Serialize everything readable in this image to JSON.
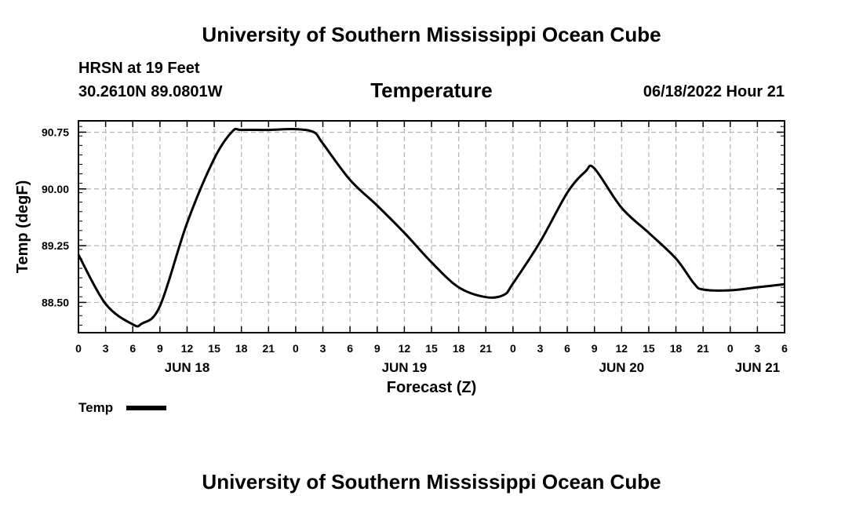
{
  "header": {
    "top_title": "University of Southern Mississippi Ocean Cube",
    "station": "HRSN at 19 Feet",
    "coordinates": "30.2610N  89.0801W",
    "chart_title": "Temperature",
    "datetime": "06/18/2022 Hour 21"
  },
  "footer": {
    "bottom_title": "University of Southern Mississippi Ocean Cube"
  },
  "chart_data": {
    "type": "line",
    "title": "Temperature",
    "xlabel": "Forecast (Z)",
    "ylabel": "Temp (degF)",
    "xlim": [
      0,
      78
    ],
    "ylim": [
      88.1,
      90.9
    ],
    "x_unit": "hours since 06/18/2022 00Z",
    "yticks": [
      "88.50",
      "89.25",
      "90.00",
      "90.75"
    ],
    "ytick_values": [
      88.5,
      89.25,
      90.0,
      90.75
    ],
    "xtick_labels": [
      "0",
      "3",
      "6",
      "9",
      "12",
      "15",
      "18",
      "21",
      "0",
      "3",
      "6",
      "9",
      "12",
      "15",
      "18",
      "21",
      "0",
      "3",
      "6",
      "9",
      "12",
      "15",
      "18",
      "21",
      "0",
      "3",
      "6"
    ],
    "day_labels": [
      {
        "label": "JUN 18",
        "x": 12
      },
      {
        "label": "JUN 19",
        "x": 36
      },
      {
        "label": "JUN 20",
        "x": 60
      },
      {
        "label": "JUN 21",
        "x": 75
      }
    ],
    "grid": true,
    "legend_position": "bottom-left",
    "series": [
      {
        "name": "Temp",
        "color": "#000000",
        "x": [
          0,
          3,
          6,
          7,
          9,
          12,
          15,
          17,
          18,
          21,
          24,
          26,
          27,
          30,
          33,
          36,
          39,
          42,
          45,
          47,
          48,
          51,
          54,
          56,
          57,
          60,
          63,
          66,
          68,
          69,
          72,
          75,
          78
        ],
        "y": [
          89.13,
          88.48,
          88.21,
          88.22,
          88.45,
          89.55,
          90.4,
          90.76,
          90.78,
          90.78,
          90.79,
          90.75,
          90.6,
          90.12,
          89.78,
          89.42,
          89.03,
          88.7,
          88.57,
          88.6,
          88.75,
          89.3,
          89.95,
          90.23,
          90.27,
          89.75,
          89.42,
          89.08,
          88.75,
          88.67,
          88.66,
          88.7,
          88.74
        ]
      }
    ]
  }
}
